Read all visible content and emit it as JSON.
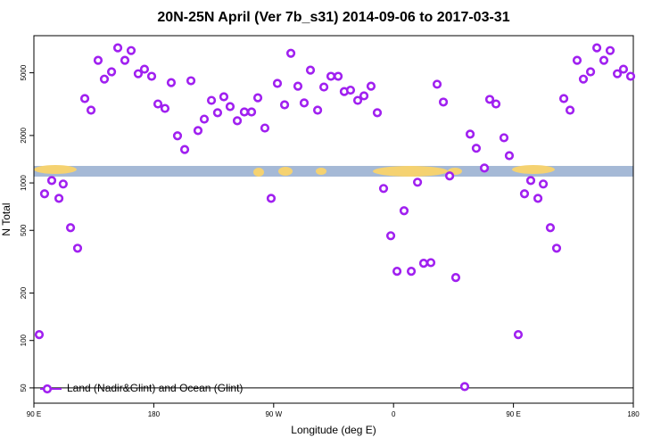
{
  "chart_data": {
    "type": "scatter",
    "title": "20N-25N April (Ver 7b_s31)   2014-09-06 to 2017-03-31",
    "x_label": "Longitude (deg E)",
    "y_label": "N Total",
    "log_y": true,
    "legend_position": "bottom-left",
    "reference_line": 50,
    "xlim": [
      90,
      540
    ],
    "ylim": [
      40,
      8600
    ],
    "xticks": [
      {
        "value": 90,
        "label": "90 E"
      },
      180,
      {
        "value": 270,
        "label": "90 W"
      },
      {
        "value": 360,
        "label": "0"
      },
      {
        "value": 450,
        "label": "90 E"
      },
      {
        "value": 540,
        "label": "180"
      }
    ],
    "yticks": [
      50,
      100,
      200,
      500,
      1000,
      2000,
      5000
    ],
    "series": [
      {
        "name": "Land (Nadir&Glint) and Ocean (Glint)",
        "color": "#a020f0",
        "x": [
          94,
          98,
          103.4,
          108.8,
          112,
          117.5,
          122.8,
          128.2,
          132.9,
          138.2,
          142.9,
          148.3,
          153,
          158.3,
          163,
          168.3,
          173,
          178.4,
          183.1,
          188.4,
          193.1,
          197.8,
          203.2,
          207.9,
          213.2,
          217.9,
          223.3,
          227.9,
          232.6,
          237.3,
          242.7,
          248,
          253.4,
          258.1,
          263.4,
          268.1,
          272.8,
          278.2,
          282.9,
          288.2,
          292.9,
          297.6,
          303,
          307.7,
          313,
          318.4,
          323,
          327.7,
          333.1,
          337.8,
          343.1,
          347.8,
          352.5,
          357.9,
          362.6,
          367.9,
          373.3,
          378,
          382.6,
          388,
          392.7,
          397.4,
          402.1,
          406.7,
          413.4,
          417.5,
          422.1,
          428.2,
          432.2,
          436.9,
          442.9,
          446.9,
          453.6,
          458.3,
          463,
          468.4,
          472.4,
          477.7,
          482.4,
          487.8,
          492.5,
          497.8,
          502.5,
          507.9,
          512.6,
          517.9,
          522.6,
          528,
          532.6,
          538
        ],
        "values": [
          109,
          853,
          1036,
          798,
          984,
          520,
          385,
          3430,
          2895,
          6000,
          4560,
          5070,
          7200,
          6000,
          6920,
          4930,
          5270,
          4750,
          3170,
          2970,
          4330,
          1990,
          1630,
          4450,
          2150,
          2540,
          3340,
          2790,
          3520,
          3050,
          2480,
          2820,
          2820,
          3470,
          2230,
          798,
          4280,
          3130,
          6650,
          4110,
          3220,
          5200,
          2895,
          4060,
          4750,
          4750,
          3800,
          3880,
          3340,
          3570,
          4110,
          2790,
          922,
          462,
          275,
          666,
          275,
          1010,
          309,
          312,
          4230,
          3260,
          1107,
          251,
          51,
          2040,
          1660,
          1243,
          3390,
          3170,
          1935,
          1490,
          109,
          853,
          1036,
          798,
          984,
          520,
          385,
          3430,
          2895,
          6000,
          4560,
          5070,
          7200,
          6000,
          6920,
          4930,
          5270,
          4750
        ]
      }
    ]
  }
}
